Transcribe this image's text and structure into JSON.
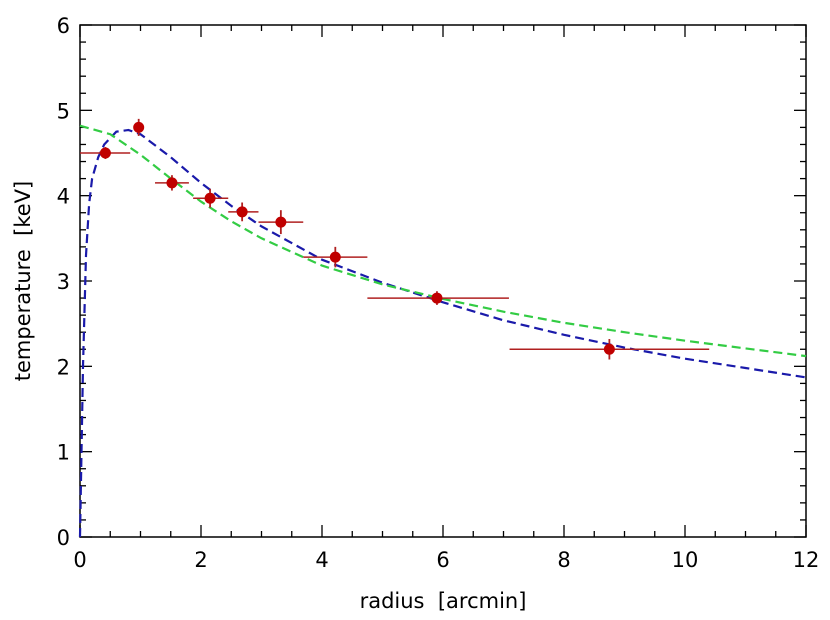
{
  "chart_data": {
    "type": "scatter",
    "xlabel": "radius  [arcmin]",
    "ylabel": "temperature  [keV]",
    "xlim": [
      0,
      12
    ],
    "ylim": [
      0,
      6
    ],
    "x_ticks": [
      "0",
      "2",
      "4",
      "6",
      "8",
      "10",
      "12"
    ],
    "y_ticks": [
      "0",
      "1",
      "2",
      "3",
      "4",
      "5",
      "6"
    ],
    "grid": false,
    "legend": "none",
    "colors": {
      "points": "#c00000",
      "errorbars": "#b02020",
      "blue_model": "#1a1aaa",
      "green_model": "#33cc44"
    },
    "points": [
      {
        "x": 0.42,
        "y": 4.5,
        "xerr_lo": 0.42,
        "xerr_hi": 0.41,
        "yerr": 0.07
      },
      {
        "x": 0.97,
        "y": 4.8,
        "xerr_lo": 0.0,
        "xerr_hi": 0.0,
        "yerr": 0.1
      },
      {
        "x": 1.52,
        "y": 4.15,
        "xerr_lo": 0.28,
        "xerr_hi": 0.28,
        "yerr": 0.09
      },
      {
        "x": 2.15,
        "y": 3.97,
        "xerr_lo": 0.28,
        "xerr_hi": 0.3,
        "yerr": 0.11
      },
      {
        "x": 2.68,
        "y": 3.81,
        "xerr_lo": 0.23,
        "xerr_hi": 0.27,
        "yerr": 0.11
      },
      {
        "x": 3.32,
        "y": 3.69,
        "xerr_lo": 0.37,
        "xerr_hi": 0.37,
        "yerr": 0.14
      },
      {
        "x": 4.22,
        "y": 3.28,
        "xerr_lo": 0.53,
        "xerr_hi": 0.53,
        "yerr": 0.12
      },
      {
        "x": 5.9,
        "y": 2.8,
        "xerr_lo": 1.15,
        "xerr_hi": 1.19,
        "yerr": 0.08
      },
      {
        "x": 8.75,
        "y": 2.2,
        "xerr_lo": 1.65,
        "xerr_hi": 1.65,
        "yerr": 0.12
      }
    ],
    "series": [
      {
        "style": "dashed",
        "color": "#1a1aaa",
        "x": [
          0,
          0.05,
          0.1,
          0.15,
          0.2,
          0.3,
          0.4,
          0.6,
          0.8,
          1.0,
          1.5,
          2.0,
          2.5,
          3.0,
          4.0,
          5.0,
          6.0,
          7.0,
          8.0,
          9.0,
          10.0,
          11.0,
          12.0
        ],
        "y": [
          0,
          2.0,
          3.3,
          3.9,
          4.2,
          4.45,
          4.6,
          4.75,
          4.77,
          4.72,
          4.45,
          4.15,
          3.88,
          3.64,
          3.25,
          2.98,
          2.75,
          2.54,
          2.37,
          2.22,
          2.09,
          1.98,
          1.87
        ]
      },
      {
        "style": "dashed",
        "color": "#33cc44",
        "x": [
          0,
          0.5,
          1.0,
          1.5,
          2.0,
          2.5,
          3.0,
          4.0,
          5.0,
          6.0,
          7.0,
          8.0,
          9.0,
          10.0,
          11.0,
          12.0
        ],
        "y": [
          4.82,
          4.72,
          4.48,
          4.2,
          3.93,
          3.7,
          3.5,
          3.18,
          2.96,
          2.79,
          2.64,
          2.51,
          2.4,
          2.3,
          2.21,
          2.12
        ]
      }
    ]
  }
}
